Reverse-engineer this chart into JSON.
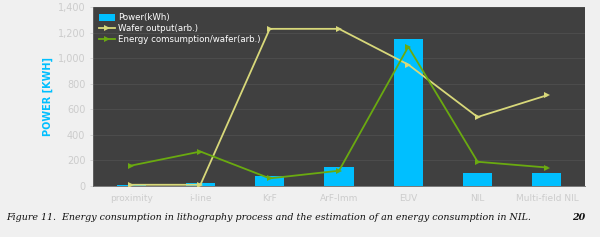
{
  "categories": [
    "proximity",
    "i-line",
    "KrF",
    "ArF-Imm",
    "EUV",
    "NIL",
    "Multi-field NIL"
  ],
  "power_kwh": [
    5,
    20,
    80,
    150,
    1150,
    100,
    100
  ],
  "wafer_output": [
    10,
    10,
    1230,
    1230,
    950,
    540,
    710
  ],
  "energy_per_wafer": [
    160,
    270,
    60,
    120,
    1090,
    190,
    145
  ],
  "ylim": [
    0,
    1400
  ],
  "yticks": [
    0,
    200,
    400,
    600,
    800,
    1000,
    1200,
    1400
  ],
  "bg_color": "#404040",
  "bar_color": "#00bfff",
  "wafer_output_color": "#d8d87a",
  "energy_per_wafer_color": "#6aaa10",
  "text_color": "white",
  "ylabel": "POWER [KWH]",
  "legend_power": "Power(kWh)",
  "legend_wafer": "Wafer output(arb.)",
  "legend_energy": "Energy comsumption/wafer(arb.)",
  "figure_caption": "Figure 11.  Energy consumption in lithography process and the estimation of an energy consumption in NIL.",
  "caption_number": "20",
  "caption_color": "#111111",
  "caption_bg": "#f0f0f0",
  "xticklabel_color": "#cccccc",
  "yticklabel_color": "#cccccc",
  "spine_bottom_color": "#888888",
  "left_panel_color": "#303030"
}
